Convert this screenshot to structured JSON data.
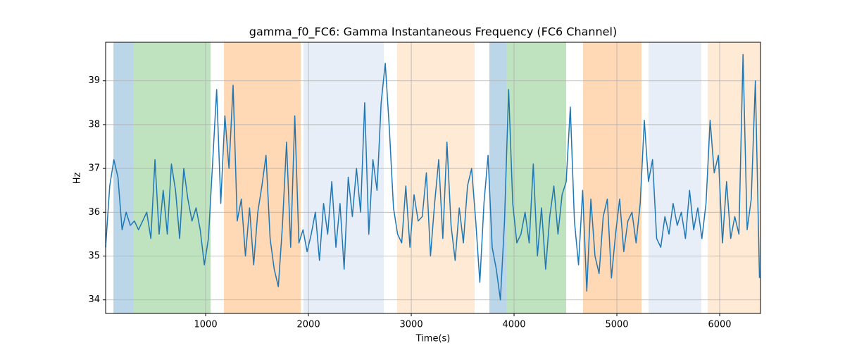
{
  "chart_data": {
    "type": "line",
    "title": "gamma_f0_FC6: Gamma Instantaneous Frequency (FC6 Channel)",
    "xlabel": "Time(s)",
    "ylabel": "Hz",
    "xlim": [
      27,
      6397
    ],
    "ylim": [
      33.69,
      39.88
    ],
    "xticks": [
      1000,
      2000,
      3000,
      4000,
      5000,
      6000
    ],
    "yticks": [
      34,
      35,
      36,
      37,
      38,
      39
    ],
    "grid": true,
    "spans": [
      {
        "x0": 103,
        "x1": 295,
        "color": "#1f77b4"
      },
      {
        "x0": 295,
        "x1": 1048,
        "color": "#2ca02c"
      },
      {
        "x0": 1178,
        "x1": 1925,
        "color": "#ff7f0e"
      },
      {
        "x0": 1952,
        "x1": 2733,
        "color": "#aec7e8"
      },
      {
        "x0": 2863,
        "x1": 3616,
        "color": "#ffbb78"
      },
      {
        "x0": 3760,
        "x1": 3925,
        "color": "#1f77b4"
      },
      {
        "x0": 3925,
        "x1": 4507,
        "color": "#2ca02c"
      },
      {
        "x0": 4671,
        "x1": 5240,
        "color": "#ff7f0e"
      },
      {
        "x0": 5308,
        "x1": 5822,
        "color": "#aec7e8"
      },
      {
        "x0": 5884,
        "x1": 6397,
        "color": "#ffbb78"
      }
    ],
    "series": [
      {
        "name": "gamma_f0_FC6",
        "color": "#1f77b4",
        "x": [
          27,
          67,
          107,
          147,
          187,
          227,
          267,
          307,
          347,
          387,
          427,
          467,
          507,
          547,
          587,
          627,
          667,
          707,
          747,
          787,
          827,
          867,
          907,
          947,
          987,
          1027,
          1067,
          1107,
          1147,
          1187,
          1227,
          1267,
          1307,
          1347,
          1387,
          1427,
          1467,
          1507,
          1547,
          1587,
          1627,
          1667,
          1707,
          1747,
          1787,
          1827,
          1867,
          1907,
          1947,
          1987,
          2027,
          2067,
          2107,
          2147,
          2187,
          2227,
          2267,
          2307,
          2347,
          2387,
          2427,
          2467,
          2507,
          2547,
          2587,
          2627,
          2667,
          2707,
          2747,
          2787,
          2827,
          2867,
          2907,
          2947,
          2987,
          3027,
          3067,
          3107,
          3147,
          3187,
          3227,
          3267,
          3307,
          3347,
          3387,
          3427,
          3467,
          3507,
          3547,
          3587,
          3627,
          3667,
          3707,
          3747,
          3787,
          3827,
          3867,
          3907,
          3947,
          3987,
          4027,
          4067,
          4107,
          4147,
          4187,
          4227,
          4267,
          4307,
          4347,
          4387,
          4427,
          4467,
          4507,
          4547,
          4587,
          4627,
          4667,
          4707,
          4747,
          4787,
          4827,
          4867,
          4907,
          4947,
          4987,
          5027,
          5067,
          5107,
          5147,
          5187,
          5227,
          5267,
          5307,
          5347,
          5387,
          5427,
          5467,
          5507,
          5547,
          5587,
          5627,
          5667,
          5707,
          5747,
          5787,
          5827,
          5867,
          5907,
          5947,
          5987,
          6027,
          6067,
          6107,
          6147,
          6187,
          6227,
          6267,
          6307,
          6347,
          6387
        ],
        "values": [
          35.2,
          36.6,
          37.2,
          36.8,
          35.6,
          36.0,
          35.7,
          35.8,
          35.6,
          35.8,
          36.0,
          35.4,
          37.2,
          35.5,
          36.5,
          35.5,
          37.1,
          36.5,
          35.4,
          37.0,
          36.3,
          35.8,
          36.1,
          35.6,
          34.8,
          35.4,
          37.1,
          38.8,
          36.2,
          38.2,
          37.0,
          38.9,
          35.8,
          36.3,
          35.0,
          36.1,
          34.8,
          36.0,
          36.6,
          37.3,
          35.4,
          34.7,
          34.3,
          35.7,
          37.6,
          35.2,
          38.2,
          35.3,
          35.6,
          35.1,
          35.5,
          36.0,
          34.9,
          36.2,
          35.5,
          36.7,
          35.2,
          36.2,
          34.7,
          36.8,
          35.9,
          37.0,
          36.0,
          38.5,
          35.5,
          37.2,
          36.5,
          38.5,
          39.4,
          37.9,
          36.1,
          35.5,
          35.3,
          36.6,
          35.2,
          36.4,
          35.8,
          35.9,
          36.9,
          35.0,
          36.2,
          37.2,
          35.4,
          37.6,
          35.7,
          34.9,
          36.1,
          35.3,
          36.6,
          37.0,
          35.8,
          34.4,
          36.2,
          37.3,
          35.2,
          34.7,
          34.0,
          35.8,
          38.8,
          36.2,
          35.3,
          35.5,
          36.0,
          35.3,
          37.1,
          35.0,
          36.1,
          34.7,
          35.9,
          36.6,
          35.5,
          36.4,
          36.7,
          38.4,
          35.8,
          34.8,
          36.5,
          34.2,
          36.3,
          35.0,
          34.6,
          35.9,
          36.3,
          34.5,
          35.5,
          36.3,
          35.1,
          35.8,
          36.0,
          35.3,
          36.2,
          38.1,
          36.7,
          37.2,
          35.4,
          35.2,
          35.9,
          35.5,
          36.2,
          35.7,
          36.0,
          35.4,
          36.5,
          35.6,
          36.1,
          35.4,
          36.2,
          38.1,
          36.9,
          37.3,
          35.3,
          36.7,
          35.4,
          35.9,
          35.5,
          39.6,
          35.6,
          36.3,
          39.0,
          34.5
        ]
      }
    ]
  }
}
